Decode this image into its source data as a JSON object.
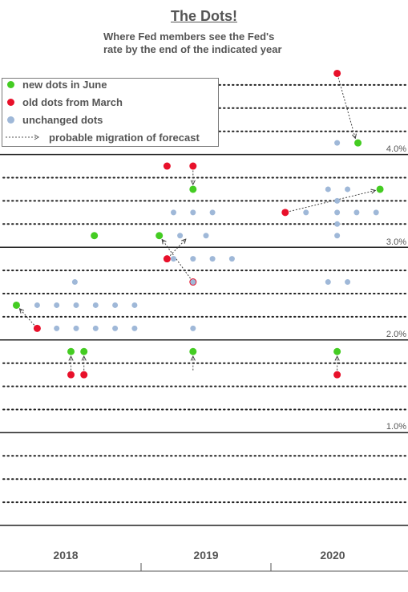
{
  "chart_data": {
    "type": "scatter",
    "title": "The Dots!",
    "subtitle": [
      "Where Fed members see the Fed's",
      "rate by the end of the indicated year"
    ],
    "xlabel": "",
    "ylabel": "",
    "categories": [
      "2018",
      "2019",
      "2020"
    ],
    "y_ticks": [
      "4.0%",
      "3.0%",
      "2.0%",
      "1.0%"
    ],
    "ylim": [
      0.0,
      4.875
    ],
    "grid": true,
    "legend_position": "top-left",
    "legend": {
      "new": "new dots in June",
      "old": "old dots from March",
      "unchanged": "unchanged dots",
      "migration": "probable migration of forecast"
    },
    "colors": {
      "new": "#44cc22",
      "old": "#e8102a",
      "unchanged": "#9fb8d8",
      "text": "#555555",
      "grid": "#222222"
    },
    "series": [
      {
        "name": "new dots in June",
        "points": [
          {
            "year": "2018",
            "x": 0.04,
            "y": 2.375
          },
          {
            "year": "2018",
            "x": 0.46,
            "y": 1.875
          },
          {
            "year": "2018",
            "x": 0.56,
            "y": 1.875
          },
          {
            "year": "2019",
            "x": 0.64,
            "y": 3.125
          },
          {
            "year": "2019",
            "x": 1.14,
            "y": 3.125
          },
          {
            "year": "2019",
            "x": 1.4,
            "y": 3.625
          },
          {
            "year": "2019",
            "x": 1.4,
            "y": 1.875
          },
          {
            "year": "2020",
            "x": 2.67,
            "y": 4.125
          },
          {
            "year": "2020",
            "x": 2.84,
            "y": 3.625
          },
          {
            "year": "2020",
            "x": 2.51,
            "y": 1.875
          }
        ]
      },
      {
        "name": "old dots from March",
        "points": [
          {
            "year": "2018",
            "x": 0.2,
            "y": 2.125
          },
          {
            "year": "2018",
            "x": 0.46,
            "y": 1.625
          },
          {
            "year": "2018",
            "x": 0.56,
            "y": 1.625
          },
          {
            "year": "2019",
            "x": 1.4,
            "y": 3.875
          },
          {
            "year": "2019",
            "x": 1.4,
            "y": 2.625
          },
          {
            "year": "2019",
            "x": 1.2,
            "y": 3.875
          },
          {
            "year": "2019",
            "x": 1.2,
            "y": 2.875
          },
          {
            "year": "2020",
            "x": 2.51,
            "y": 4.875
          },
          {
            "year": "2020",
            "x": 2.11,
            "y": 3.375
          },
          {
            "year": "2020",
            "x": 2.51,
            "y": 1.625
          }
        ]
      },
      {
        "name": "unchanged dots",
        "points": [
          {
            "year": "2018",
            "x": 0.49,
            "y": 2.625
          },
          {
            "year": "2018",
            "x": 0.2,
            "y": 2.375
          },
          {
            "year": "2018",
            "x": 0.35,
            "y": 2.375
          },
          {
            "year": "2018",
            "x": 0.5,
            "y": 2.375
          },
          {
            "year": "2018",
            "x": 0.65,
            "y": 2.375
          },
          {
            "year": "2018",
            "x": 0.8,
            "y": 2.375
          },
          {
            "year": "2018",
            "x": 0.95,
            "y": 2.375
          },
          {
            "year": "2018",
            "x": 0.35,
            "y": 2.125
          },
          {
            "year": "2018",
            "x": 0.5,
            "y": 2.125
          },
          {
            "year": "2018",
            "x": 0.65,
            "y": 2.125
          },
          {
            "year": "2018",
            "x": 0.8,
            "y": 2.125
          },
          {
            "year": "2018",
            "x": 0.95,
            "y": 2.125
          },
          {
            "year": "2019",
            "x": 1.25,
            "y": 3.375
          },
          {
            "year": "2019",
            "x": 1.4,
            "y": 3.375
          },
          {
            "year": "2019",
            "x": 1.55,
            "y": 3.375
          },
          {
            "year": "2019",
            "x": 1.3,
            "y": 3.125
          },
          {
            "year": "2019",
            "x": 1.5,
            "y": 3.125
          },
          {
            "year": "2019",
            "x": 1.25,
            "y": 2.875
          },
          {
            "year": "2019",
            "x": 1.4,
            "y": 2.875
          },
          {
            "year": "2019",
            "x": 1.55,
            "y": 2.875
          },
          {
            "year": "2019",
            "x": 1.7,
            "y": 2.875
          },
          {
            "year": "2019",
            "x": 1.4,
            "y": 2.625
          },
          {
            "year": "2019",
            "x": 1.4,
            "y": 2.125
          },
          {
            "year": "2020",
            "x": 2.51,
            "y": 4.125
          },
          {
            "year": "2020",
            "x": 2.44,
            "y": 3.625
          },
          {
            "year": "2020",
            "x": 2.59,
            "y": 3.625
          },
          {
            "year": "2020",
            "x": 2.27,
            "y": 3.375
          },
          {
            "year": "2020",
            "x": 2.51,
            "y": 3.5
          },
          {
            "year": "2020",
            "x": 2.51,
            "y": 3.375
          },
          {
            "year": "2020",
            "x": 2.51,
            "y": 3.25
          },
          {
            "year": "2020",
            "x": 2.66,
            "y": 3.375
          },
          {
            "year": "2020",
            "x": 2.81,
            "y": 3.375
          },
          {
            "year": "2020",
            "x": 2.51,
            "y": 3.125
          },
          {
            "year": "2020",
            "x": 2.44,
            "y": 2.625
          },
          {
            "year": "2020",
            "x": 2.59,
            "y": 2.625
          }
        ]
      }
    ],
    "migrations": [
      {
        "from": [
          2.51,
          4.875
        ],
        "to": [
          2.66,
          4.125
        ]
      },
      {
        "from": [
          1.4,
          3.875
        ],
        "to": [
          1.4,
          3.625
        ]
      },
      {
        "from": [
          2.11,
          3.375
        ],
        "to": [
          2.84,
          3.625
        ]
      },
      {
        "from": [
          1.2,
          2.875
        ],
        "to": [
          1.37,
          3.125
        ]
      },
      {
        "from": [
          1.4,
          2.625
        ],
        "to": [
          1.14,
          3.125
        ]
      },
      {
        "from": [
          0.2,
          2.125
        ],
        "to": [
          0.04,
          2.375
        ]
      },
      {
        "from": [
          0.46,
          1.625
        ],
        "to": [
          0.46,
          1.875
        ]
      },
      {
        "from": [
          0.56,
          1.625
        ],
        "to": [
          0.56,
          1.875
        ]
      },
      {
        "from": [
          1.4,
          1.625
        ],
        "to": [
          1.4,
          1.875
        ]
      },
      {
        "from": [
          2.51,
          1.625
        ],
        "to": [
          2.51,
          1.875
        ]
      }
    ]
  }
}
